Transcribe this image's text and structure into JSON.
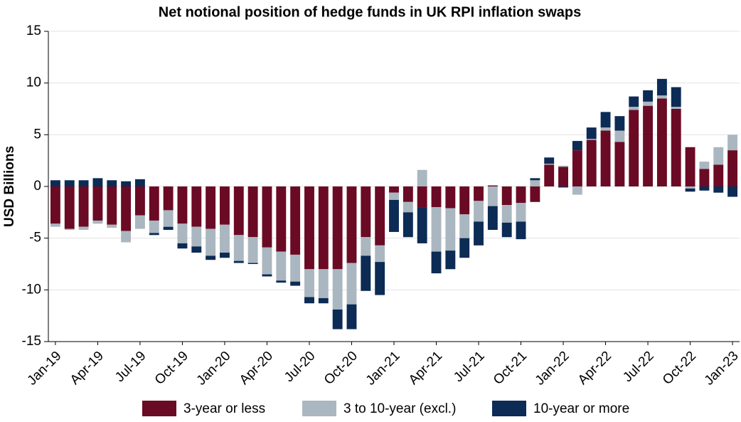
{
  "chart_data": {
    "type": "stacked_bar",
    "title": "Net notional position of hedge funds in UK RPI inflation swaps",
    "y_label": "USD Billions",
    "categories": [
      "Jan-19",
      null,
      null,
      "Apr-19",
      null,
      null,
      "Jul-19",
      null,
      null,
      "Oct-19",
      null,
      null,
      "Jan-20",
      null,
      null,
      "Apr-20",
      null,
      null,
      "Jul-20",
      null,
      null,
      "Oct-20",
      null,
      null,
      "Jan-21",
      null,
      null,
      "Apr-21",
      null,
      null,
      "Jul-21",
      null,
      null,
      "Oct-21",
      null,
      null,
      "Jan-22",
      null,
      null,
      "Apr-22",
      null,
      null,
      "Jul-22",
      null,
      null,
      "Oct-22",
      null,
      null,
      "Jan-23"
    ],
    "series": [
      {
        "name": "3-year or less",
        "color": "#6b0a24",
        "values": [
          -3.6,
          -4.1,
          -3.9,
          -3.3,
          -3.7,
          -4.3,
          -2.8,
          -3.3,
          -2.3,
          -3.6,
          -3.9,
          -4.1,
          -3.7,
          -4.7,
          -4.9,
          -5.9,
          -6.3,
          -6.6,
          -8.0,
          -8.0,
          -8.0,
          -7.4,
          -4.9,
          -5.7,
          -0.6,
          -1.5,
          -2.0,
          -2.0,
          -2.1,
          -2.7,
          -1.4,
          0.1,
          -1.8,
          -1.6,
          -1.5,
          2.1,
          1.9,
          3.5,
          4.5,
          5.4,
          4.3,
          7.4,
          7.8,
          8.5,
          7.5,
          3.8,
          1.7,
          2.1,
          3.5
        ]
      },
      {
        "name": "3 to 10-year (excl.)",
        "color": "#aab7c0",
        "values": [
          -0.3,
          -0.1,
          -0.3,
          -0.3,
          -0.3,
          -1.1,
          -1.3,
          -1.2,
          -1.6,
          -1.9,
          -1.9,
          -2.6,
          -2.7,
          -2.5,
          -2.5,
          -2.6,
          -2.8,
          -2.6,
          -2.7,
          -2.8,
          -3.9,
          -4.0,
          -1.8,
          -1.6,
          -0.7,
          -1.0,
          1.6,
          -4.3,
          -4.1,
          -2.3,
          -2.0,
          -1.9,
          -1.7,
          -1.8,
          0.6,
          0.1,
          0.1,
          -0.8,
          0.1,
          0.3,
          1.1,
          0.3,
          0.4,
          0.3,
          0.2,
          -0.2,
          0.7,
          1.7,
          1.5
        ]
      },
      {
        "name": "10-year or more",
        "color": "#0c2b55",
        "values": [
          0.6,
          0.6,
          0.6,
          0.8,
          0.6,
          0.5,
          0.7,
          -0.2,
          -0.3,
          -0.5,
          -0.6,
          -0.4,
          -0.5,
          -0.2,
          -0.1,
          -0.2,
          -0.2,
          -0.4,
          -0.6,
          -0.5,
          -1.9,
          -2.4,
          -3.4,
          -3.2,
          -3.1,
          -2.4,
          -3.5,
          -2.1,
          -1.8,
          -1.9,
          -2.3,
          -2.3,
          -1.4,
          -1.7,
          0.2,
          0.6,
          -0.1,
          0.9,
          1.1,
          1.5,
          1.4,
          1.0,
          1.1,
          1.6,
          1.9,
          -0.3,
          -0.4,
          -0.6,
          -1.0
        ]
      }
    ],
    "ylim": [
      -15,
      15
    ],
    "yticks": [
      -15,
      -10,
      -5,
      0,
      5,
      10,
      15
    ],
    "grid": true,
    "legend": "bottom"
  }
}
